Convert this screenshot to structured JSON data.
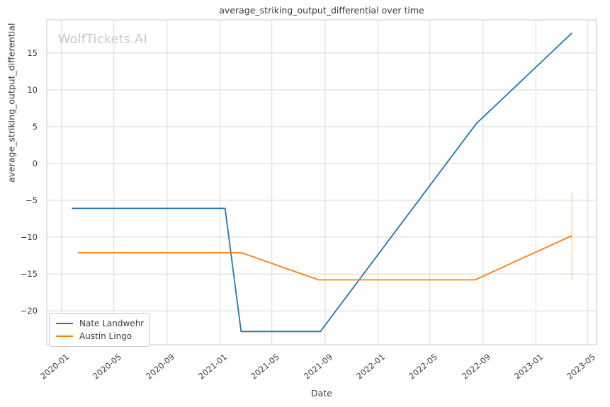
{
  "chart_data": {
    "type": "line",
    "title": "average_striking_output_differential over time",
    "xlabel": "Date",
    "ylabel": "average_striking_output_differential",
    "watermark": "WolfTickets.AI",
    "grid": true,
    "legend_position": "lower left",
    "x_range": [
      "2019-11-28",
      "2023-05-21"
    ],
    "y_range": [
      -24.6,
      19.5
    ],
    "x_ticks": [
      "2020-01",
      "2020-05",
      "2020-09",
      "2021-01",
      "2021-05",
      "2021-09",
      "2022-01",
      "2022-05",
      "2022-09",
      "2023-01",
      "2023-05"
    ],
    "y_ticks": [
      {
        "value": -20,
        "label": "−20"
      },
      {
        "value": -15,
        "label": "−15"
      },
      {
        "value": -10,
        "label": "−10"
      },
      {
        "value": -5,
        "label": "−5"
      },
      {
        "value": 0,
        "label": "0"
      },
      {
        "value": 5,
        "label": "5"
      },
      {
        "value": 10,
        "label": "10"
      },
      {
        "value": 15,
        "label": "15"
      }
    ],
    "series": [
      {
        "name": "Nate Landwehr",
        "color": "#1f77b4",
        "points": [
          [
            "2020-01-25",
            -6.1
          ],
          [
            "2021-01-13",
            -6.1
          ],
          [
            "2021-02-19",
            -22.8
          ],
          [
            "2021-08-21",
            -22.8
          ],
          [
            "2022-08-16",
            5.4
          ],
          [
            "2023-03-25",
            17.7
          ]
        ]
      },
      {
        "name": "Austin Lingo",
        "color": "#ff7f0e",
        "points": [
          [
            "2020-02-08",
            -12.1
          ],
          [
            "2021-02-19",
            -12.1
          ],
          [
            "2021-08-17",
            -15.8
          ],
          [
            "2022-08-13",
            -15.8
          ],
          [
            "2023-03-25",
            -9.8
          ]
        ],
        "error_bar": {
          "x": "2023-03-25",
          "low": -15.9,
          "high": -3.8,
          "opacity": 0.3
        }
      }
    ],
    "colors": {
      "grid": "#d9d9d9",
      "spine": "#c9c9c9",
      "text": "#3b3b3b",
      "watermark": "#c9c9c9",
      "background": "#ffffff"
    }
  }
}
